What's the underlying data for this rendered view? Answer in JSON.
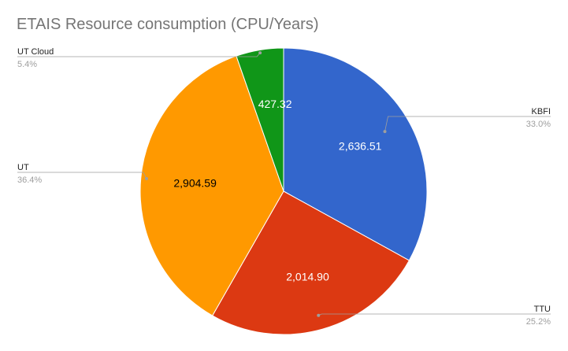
{
  "chart_data": {
    "type": "pie",
    "title": "ETAIS Resource consumption (CPU/Years)",
    "slices": [
      {
        "name": "KBFI",
        "value": 2636.51,
        "value_label": "2,636.51",
        "percent_label": "33.0%",
        "color": "#3366cc",
        "label_color": "#ffffff"
      },
      {
        "name": "TTU",
        "value": 2014.9,
        "value_label": "2,014.90",
        "percent_label": "25.2%",
        "color": "#dc3912",
        "label_color": "#ffffff"
      },
      {
        "name": "UT",
        "value": 2904.59,
        "value_label": "2,904.59",
        "percent_label": "36.4%",
        "color": "#ff9900",
        "label_color": "#000000"
      },
      {
        "name": "UT Cloud",
        "value": 427.32,
        "value_label": "427.32",
        "percent_label": "5.4%",
        "color": "#109618",
        "label_color": "#ffffff"
      }
    ],
    "legend": "labeled callouts"
  }
}
